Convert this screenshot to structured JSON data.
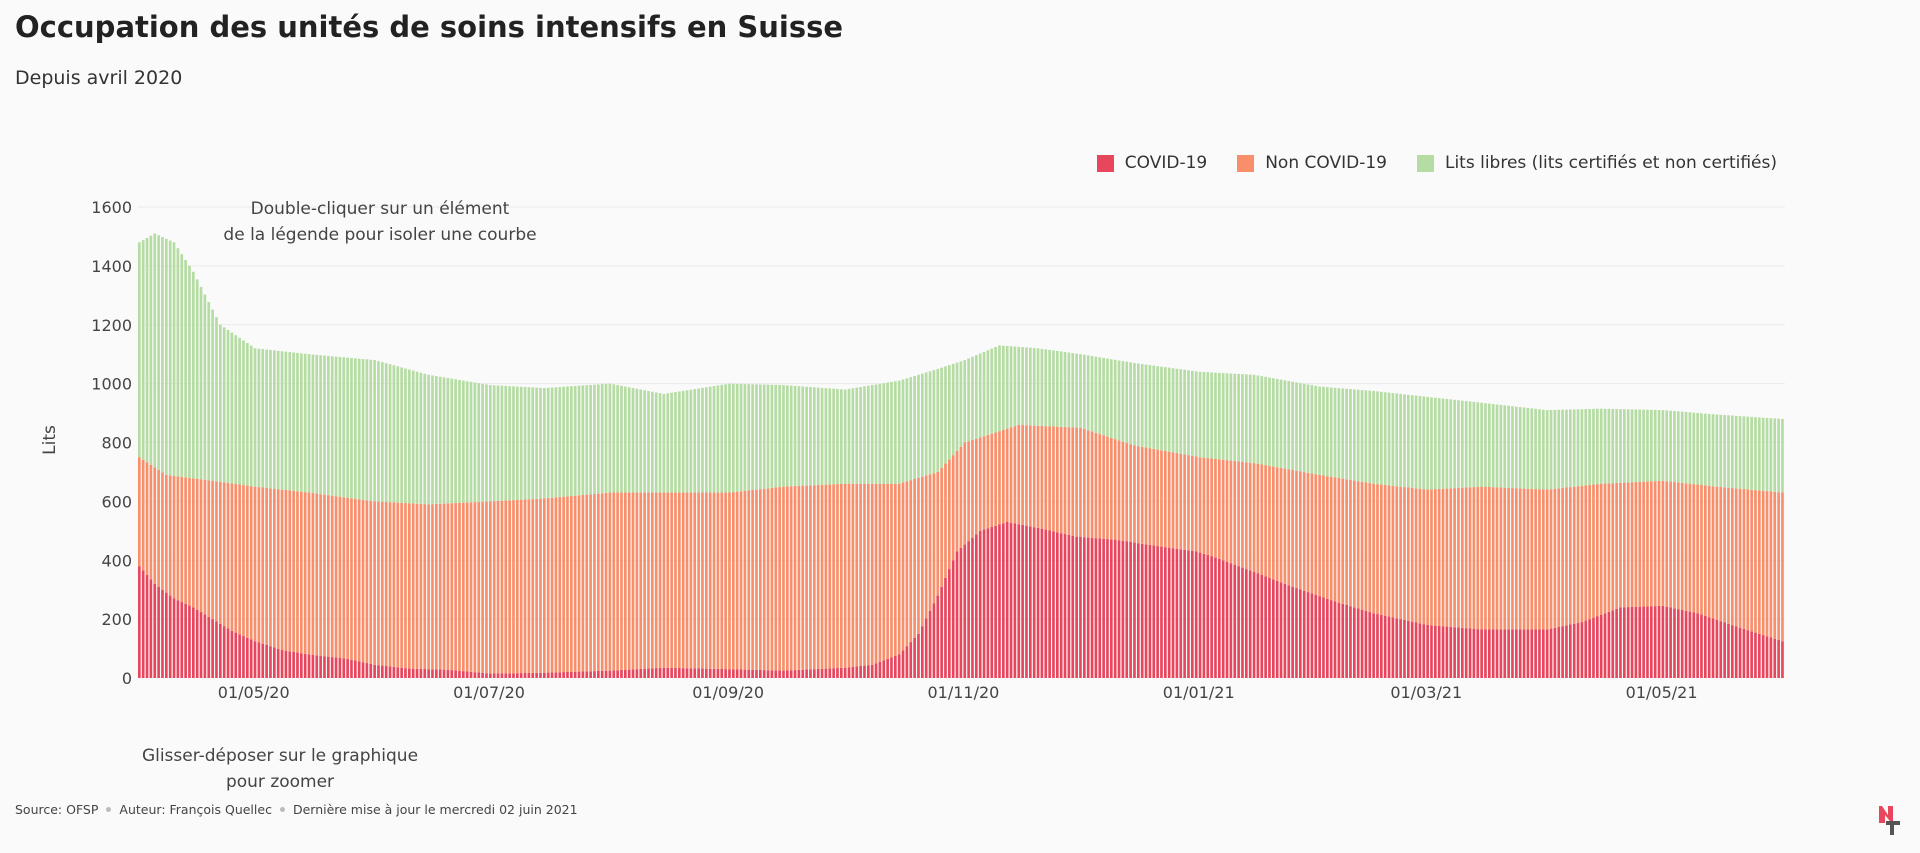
{
  "header": {
    "title": "Occupation des unités de soins intensifs en Suisse",
    "subtitle": "Depuis avril 2020"
  },
  "legend": {
    "covid": "COVID-19",
    "noncovid": "Non COVID-19",
    "free": "Lits libres (lits certifiés et non certifiés)"
  },
  "colors": {
    "covid": "#e8465d",
    "noncovid": "#f98e6b",
    "free": "#b5dca3",
    "grid": "#ffffff"
  },
  "hints": {
    "legend_line1": "Double-cliquer sur un élément",
    "legend_line2": "de la légende pour isoler une courbe",
    "zoom_line1": "Glisser-déposer sur le graphique",
    "zoom_line2": "pour zoomer"
  },
  "footer": {
    "source": "Source: OFSP",
    "author": "Auteur: François Quellec",
    "updated": "Dernière mise à jour le mercredi 02 juin 2021"
  },
  "chart_data": {
    "type": "bar",
    "stacked": true,
    "title": "Occupation des unités de soins intensifs en Suisse",
    "subtitle": "Depuis avril 2020",
    "ylabel": "Lits",
    "xlabel": "",
    "ylim": [
      0,
      1600
    ],
    "yticks": [
      0,
      200,
      400,
      600,
      800,
      1000,
      1200,
      1400,
      1600
    ],
    "xlim": [
      "2020-04-01",
      "2021-06-01"
    ],
    "xticks": [
      {
        "date": "2020-05-01",
        "label": "01/05/20"
      },
      {
        "date": "2020-07-01",
        "label": "01/07/20"
      },
      {
        "date": "2020-09-01",
        "label": "01/09/20"
      },
      {
        "date": "2020-11-01",
        "label": "01/11/20"
      },
      {
        "date": "2021-01-01",
        "label": "01/01/21"
      },
      {
        "date": "2021-03-01",
        "label": "01/03/21"
      },
      {
        "date": "2021-05-01",
        "label": "01/05/21"
      }
    ],
    "grid": true,
    "legend_position": "top-right",
    "series": [
      {
        "name": "COVID-19",
        "key": "covid",
        "points": [
          [
            "2020-04-01",
            380
          ],
          [
            "2020-04-05",
            320
          ],
          [
            "2020-04-10",
            270
          ],
          [
            "2020-04-15",
            240
          ],
          [
            "2020-04-20",
            200
          ],
          [
            "2020-04-25",
            160
          ],
          [
            "2020-05-01",
            125
          ],
          [
            "2020-05-08",
            95
          ],
          [
            "2020-05-15",
            80
          ],
          [
            "2020-05-25",
            65
          ],
          [
            "2020-06-01",
            45
          ],
          [
            "2020-06-10",
            32
          ],
          [
            "2020-06-20",
            28
          ],
          [
            "2020-07-01",
            15
          ],
          [
            "2020-07-15",
            18
          ],
          [
            "2020-08-01",
            25
          ],
          [
            "2020-08-15",
            35
          ],
          [
            "2020-09-01",
            30
          ],
          [
            "2020-09-15",
            25
          ],
          [
            "2020-10-01",
            35
          ],
          [
            "2020-10-08",
            45
          ],
          [
            "2020-10-15",
            80
          ],
          [
            "2020-10-20",
            150
          ],
          [
            "2020-10-25",
            280
          ],
          [
            "2020-10-30",
            430
          ],
          [
            "2020-11-05",
            500
          ],
          [
            "2020-11-12",
            530
          ],
          [
            "2020-11-20",
            510
          ],
          [
            "2020-11-30",
            480
          ],
          [
            "2020-12-10",
            470
          ],
          [
            "2020-12-20",
            450
          ],
          [
            "2020-12-31",
            430
          ],
          [
            "2021-01-05",
            410
          ],
          [
            "2021-01-15",
            360
          ],
          [
            "2021-01-25",
            310
          ],
          [
            "2021-02-05",
            260
          ],
          [
            "2021-02-15",
            220
          ],
          [
            "2021-03-01",
            180
          ],
          [
            "2021-03-15",
            165
          ],
          [
            "2021-04-01",
            165
          ],
          [
            "2021-04-10",
            190
          ],
          [
            "2021-04-20",
            240
          ],
          [
            "2021-05-01",
            245
          ],
          [
            "2021-05-10",
            220
          ],
          [
            "2021-05-20",
            175
          ],
          [
            "2021-06-01",
            125
          ]
        ]
      },
      {
        "name": "Non COVID-19",
        "key": "noncovid",
        "points": [
          [
            "2020-04-01",
            750
          ],
          [
            "2020-04-08",
            690
          ],
          [
            "2020-04-20",
            670
          ],
          [
            "2020-05-01",
            650
          ],
          [
            "2020-05-15",
            630
          ],
          [
            "2020-06-01",
            600
          ],
          [
            "2020-06-15",
            590
          ],
          [
            "2020-07-01",
            600
          ],
          [
            "2020-07-15",
            610
          ],
          [
            "2020-08-01",
            630
          ],
          [
            "2020-08-15",
            630
          ],
          [
            "2020-09-01",
            630
          ],
          [
            "2020-09-15",
            650
          ],
          [
            "2020-10-01",
            660
          ],
          [
            "2020-10-15",
            660
          ],
          [
            "2020-10-25",
            700
          ],
          [
            "2020-11-01",
            800
          ],
          [
            "2020-11-15",
            860
          ],
          [
            "2020-12-01",
            850
          ],
          [
            "2020-12-15",
            790
          ],
          [
            "2021-01-01",
            750
          ],
          [
            "2021-01-15",
            730
          ],
          [
            "2021-02-01",
            690
          ],
          [
            "2021-02-15",
            660
          ],
          [
            "2021-03-01",
            640
          ],
          [
            "2021-03-15",
            650
          ],
          [
            "2021-04-01",
            640
          ],
          [
            "2021-04-15",
            660
          ],
          [
            "2021-05-01",
            670
          ],
          [
            "2021-05-15",
            650
          ],
          [
            "2021-06-01",
            630
          ]
        ]
      },
      {
        "name": "Lits libres (lits certifiés et non certifiés)",
        "key": "free",
        "points": [
          [
            "2020-04-01",
            1480
          ],
          [
            "2020-04-05",
            1510
          ],
          [
            "2020-04-10",
            1480
          ],
          [
            "2020-04-15",
            1380
          ],
          [
            "2020-04-22",
            1200
          ],
          [
            "2020-05-01",
            1120
          ],
          [
            "2020-05-15",
            1100
          ],
          [
            "2020-06-01",
            1080
          ],
          [
            "2020-06-15",
            1030
          ],
          [
            "2020-07-01",
            995
          ],
          [
            "2020-07-15",
            985
          ],
          [
            "2020-08-01",
            1000
          ],
          [
            "2020-08-15",
            965
          ],
          [
            "2020-09-01",
            1000
          ],
          [
            "2020-09-15",
            995
          ],
          [
            "2020-10-01",
            980
          ],
          [
            "2020-10-15",
            1010
          ],
          [
            "2020-10-25",
            1050
          ],
          [
            "2020-11-01",
            1080
          ],
          [
            "2020-11-10",
            1130
          ],
          [
            "2020-11-20",
            1120
          ],
          [
            "2020-12-01",
            1100
          ],
          [
            "2020-12-15",
            1070
          ],
          [
            "2021-01-01",
            1040
          ],
          [
            "2021-01-15",
            1030
          ],
          [
            "2021-02-01",
            990
          ],
          [
            "2021-02-15",
            975
          ],
          [
            "2021-03-01",
            955
          ],
          [
            "2021-03-15",
            935
          ],
          [
            "2021-04-01",
            910
          ],
          [
            "2021-04-15",
            915
          ],
          [
            "2021-05-01",
            910
          ],
          [
            "2021-05-15",
            895
          ],
          [
            "2021-06-01",
            880
          ]
        ]
      }
    ]
  }
}
